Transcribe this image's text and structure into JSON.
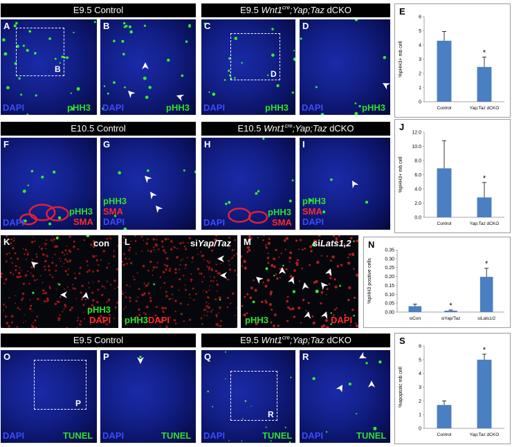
{
  "headers": {
    "e95_control": "E9.5 Control",
    "e95_dcko_prefix": "E9.5 ",
    "e105_control": "E10.5 Control",
    "e105_dcko_prefix": "E10.5 ",
    "e95_control_2": "E9.5 Control",
    "e95_dcko_prefix_2": "E9.5 ",
    "wnt1": "Wnt1",
    "cre": "cre",
    "genotype": ";Yap;Taz",
    "dcko": " dCKO"
  },
  "panel_letters": [
    "A",
    "B",
    "C",
    "D",
    "E",
    "F",
    "G",
    "H",
    "I",
    "J",
    "K",
    "L",
    "M",
    "N",
    "O",
    "P",
    "Q",
    "R",
    "S"
  ],
  "stains": {
    "dapi": "DAPI",
    "pHH3": "pHH3",
    "sma": "SMA",
    "tunel": "TUNEL",
    "con": "con",
    "si_yap_taz": "siYap/Taz",
    "si_prefix": "si",
    "yap_taz": "Yap/Taz",
    "lats": "Lats1,2"
  },
  "box_labels": {
    "b": "B",
    "d": "D",
    "p": "P",
    "r": "R"
  },
  "colors": {
    "dapi_blue": "#3a4cff",
    "phh3_green": "#2fe02f",
    "sma_red": "#ff2a2a",
    "bar_blue": "#4a7fc1"
  },
  "chart_data": [
    {
      "id": "E",
      "type": "bar",
      "categories": [
        "Control",
        "Yap;Taz dCKO"
      ],
      "values": [
        4.3,
        2.45
      ],
      "errors": [
        0.65,
        0.7
      ],
      "significance": [
        "",
        "*"
      ],
      "ylabel": "%pHH3+ mb cell",
      "ylim": [
        0,
        6
      ],
      "yticks": [
        "0",
        "1",
        "2",
        "3",
        "4",
        "5",
        "6"
      ]
    },
    {
      "id": "J",
      "type": "bar",
      "categories": [
        "Control",
        "Yap;Taz dCKO"
      ],
      "values": [
        6.9,
        2.8
      ],
      "errors": [
        3.9,
        2.1
      ],
      "significance": [
        "",
        "*"
      ],
      "ylabel": "%pHH3+ mb cell",
      "ylim": [
        0,
        12
      ],
      "yticks": [
        "0.0",
        "2.0",
        "4.0",
        "6.0",
        "8.0",
        "10.0",
        "12.0"
      ]
    },
    {
      "id": "N",
      "type": "bar",
      "categories": [
        "siCon",
        "siYap/Taz",
        "siLats1/2"
      ],
      "values": [
        0.033,
        0.008,
        0.198
      ],
      "errors": [
        0.012,
        0.004,
        0.048
      ],
      "significance": [
        "",
        "*",
        "*"
      ],
      "ylabel": "%pHH3 positive cells",
      "ylim": [
        0,
        0.35
      ],
      "yticks": [
        "0.00",
        "0.05",
        "0.10",
        "0.15",
        "0.20",
        "0.25",
        "0.30",
        "0.35"
      ]
    },
    {
      "id": "S",
      "type": "bar",
      "categories": [
        "Control",
        "Yap;Taz dCKO"
      ],
      "values": [
        1.7,
        5.0
      ],
      "errors": [
        0.3,
        0.4
      ],
      "significance": [
        "",
        "*"
      ],
      "ylabel": "%apoptotic mb cell",
      "ylim": [
        0,
        6
      ],
      "yticks": [
        "0",
        "1",
        "2",
        "3",
        "4",
        "5",
        "6"
      ]
    }
  ]
}
